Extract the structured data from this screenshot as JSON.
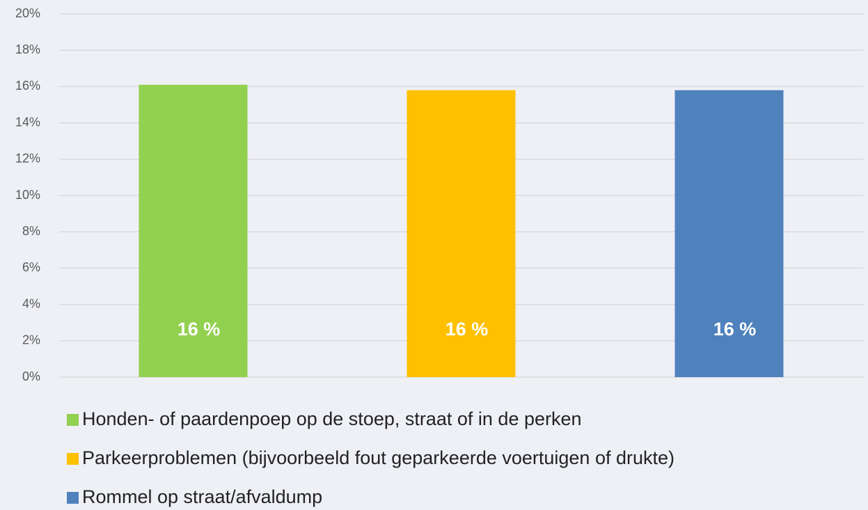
{
  "chart_data": {
    "type": "bar",
    "series": [
      {
        "name": "Honden- of paardenpoep op de stoep, straat of in de perken",
        "color": "#92d050",
        "values": [
          16.1
        ],
        "value_labels": [
          "16 %"
        ]
      },
      {
        "name": "Parkeerproblemen (bijvoorbeeld fout geparkeerde voertuigen of drukte)",
        "color": "#ffc000",
        "values": [
          15.8
        ],
        "value_labels": [
          "16 %"
        ]
      },
      {
        "name": "Rommel op straat/afvaldump",
        "color": "#4f81bd",
        "values": [
          15.8
        ],
        "value_labels": [
          "16 %"
        ]
      }
    ],
    "ylim": [
      0,
      20
    ],
    "yticks": [
      {
        "value": 0,
        "label": "0%"
      },
      {
        "value": 2,
        "label": "2%"
      },
      {
        "value": 4,
        "label": "4%"
      },
      {
        "value": 6,
        "label": "6%"
      },
      {
        "value": 8,
        "label": "8%"
      },
      {
        "value": 10,
        "label": "10%"
      },
      {
        "value": 12,
        "label": "12%"
      },
      {
        "value": 14,
        "label": "14%"
      },
      {
        "value": 16,
        "label": "16%"
      },
      {
        "value": 18,
        "label": "18%"
      },
      {
        "value": 20,
        "label": "20%"
      }
    ],
    "grid": true,
    "legend": "bottom"
  }
}
